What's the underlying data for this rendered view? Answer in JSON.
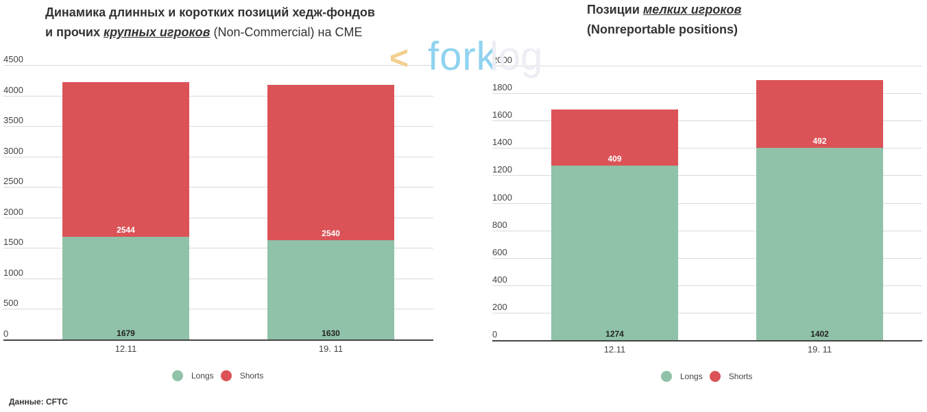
{
  "charts": [
    {
      "title_line1": "Динамика длинных и коротких позиций хедж-фондов",
      "title_line2_prefix": "и прочих ",
      "title_line2_em": "крупных игроков",
      "title_line2_suffix": " (Non-Commercial) на CME"
    },
    {
      "title_line1_prefix": "Позиции ",
      "title_line1_em": "мелких игроков",
      "title_line2": "(Nonreportable positions)"
    }
  ],
  "chart_data": [
    {
      "type": "bar",
      "stacked": true,
      "title": "Динамика длинных и коротких позиций хедж-фондов и прочих крупных игроков (Non-Commercial) на CME",
      "categories": [
        "12.11",
        "19. 11"
      ],
      "series": [
        {
          "name": "Longs",
          "values": [
            1679,
            1630
          ],
          "color": "#8fc2a8"
        },
        {
          "name": "Shorts",
          "values": [
            2544,
            2540
          ],
          "color": "#db5357"
        }
      ],
      "yticks": [
        "0",
        "500",
        "1000",
        "1500",
        "2000",
        "2500",
        "3000",
        "3500",
        "4000",
        "4500"
      ],
      "ylim": [
        0,
        4500
      ],
      "xlabel": "",
      "ylabel": "",
      "grid": true,
      "legend_position": "bottom"
    },
    {
      "type": "bar",
      "stacked": true,
      "title": "Позиции мелких игроков (Nonreportable positions)",
      "categories": [
        "12.11",
        "19. 11"
      ],
      "series": [
        {
          "name": "Longs",
          "values": [
            1274,
            1402
          ],
          "color": "#8fc2a8"
        },
        {
          "name": "Shorts",
          "values": [
            409,
            492
          ],
          "color": "#db5357"
        }
      ],
      "yticks": [
        "0",
        "200",
        "400",
        "600",
        "800",
        "1000",
        "1200",
        "1400",
        "1600",
        "1800",
        "2000"
      ],
      "ylim": [
        0,
        2000
      ],
      "xlabel": "",
      "ylabel": "",
      "grid": true,
      "legend_position": "bottom"
    }
  ],
  "legend": {
    "longs": "Longs",
    "shorts": "Shorts"
  },
  "colors": {
    "longs": "#8fc2a8",
    "shorts": "#db5357"
  },
  "watermark": {
    "arrow": "<",
    "part1": "fork",
    "part2": "log"
  },
  "source": "Данные: CFTC"
}
